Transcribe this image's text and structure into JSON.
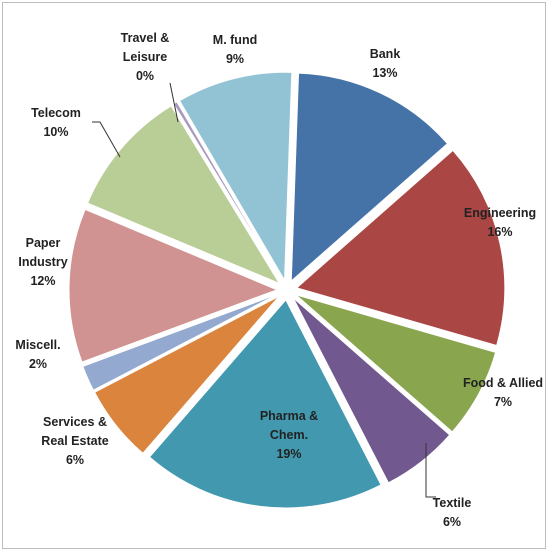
{
  "chart_data": {
    "type": "pie",
    "title": "",
    "slices": [
      {
        "label": [
          "Bank"
        ],
        "pct_text": "13%",
        "value": 13,
        "color": "#4572a7"
      },
      {
        "label": [
          "Engineering"
        ],
        "pct_text": "16%",
        "value": 16,
        "color": "#aa4643"
      },
      {
        "label": [
          "Food & Allied"
        ],
        "pct_text": "7%",
        "value": 7,
        "color": "#89a54e"
      },
      {
        "label": [
          "Textile"
        ],
        "pct_text": "6%",
        "value": 6,
        "color": "#71588f"
      },
      {
        "label": [
          "Pharma &",
          "Chem."
        ],
        "pct_text": "19%",
        "value": 19,
        "color": "#4198af"
      },
      {
        "label": [
          "Services &",
          "Real Estate"
        ],
        "pct_text": "6%",
        "value": 6,
        "color": "#db843d"
      },
      {
        "label": [
          "Miscell."
        ],
        "pct_text": "2%",
        "value": 2,
        "color": "#93a9cf"
      },
      {
        "label": [
          "Paper",
          "Industry"
        ],
        "pct_text": "12%",
        "value": 12,
        "color": "#d19392"
      },
      {
        "label": [
          "Telecom"
        ],
        "pct_text": "10%",
        "value": 10,
        "color": "#b9cd96"
      },
      {
        "label": [
          "Travel &",
          "Leisure"
        ],
        "pct_text": "0%",
        "value": 0.3,
        "color": "#a99bbd"
      },
      {
        "label": [
          "M. fund"
        ],
        "pct_text": "9%",
        "value": 9,
        "color": "#91c3d5"
      }
    ],
    "legend": "none",
    "labels": "category-and-percent, outside/inside slices"
  }
}
